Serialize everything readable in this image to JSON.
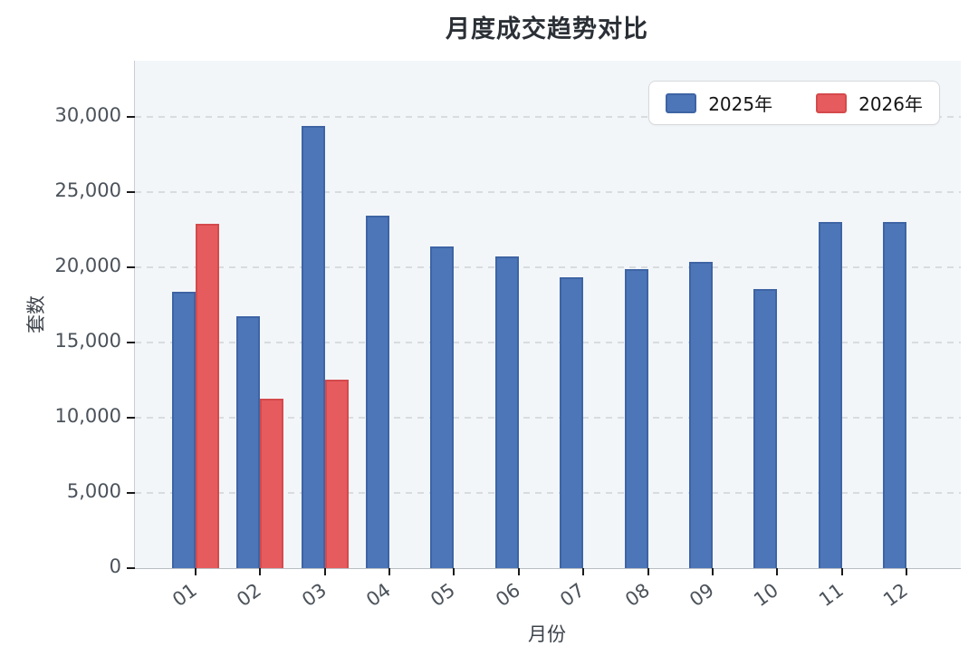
{
  "title": "月度成交趋势对比",
  "legend": {
    "items": [
      {
        "label": "2025年",
        "color": "#4c76b8",
        "edge": "#3e64a4"
      },
      {
        "label": "2026年",
        "color": "#e65c5e",
        "edge": "#d44a4c"
      }
    ]
  },
  "chart_data": {
    "type": "bar",
    "title": "月度成交趋势对比",
    "xlabel": "月份",
    "ylabel": "套数",
    "categories": [
      "01",
      "02",
      "03",
      "04",
      "05",
      "06",
      "07",
      "08",
      "09",
      "10",
      "11",
      "12"
    ],
    "series": [
      {
        "name": "2025年",
        "color": "#4c76b8",
        "edge_color": "#3e64a4",
        "values": [
          18400,
          16750,
          29400,
          23450,
          21400,
          20750,
          19350,
          19900,
          20400,
          18550,
          23000,
          23000
        ]
      },
      {
        "name": "2026年",
        "color": "#e65c5e",
        "edge_color": "#d44a4c",
        "values": [
          22900,
          11300,
          12550,
          null,
          null,
          null,
          null,
          null,
          null,
          null,
          null,
          null
        ]
      }
    ],
    "ylim": [
      0,
      33750
    ],
    "yticks": [
      0,
      5000,
      10000,
      15000,
      20000,
      25000,
      30000
    ],
    "grid": "horizontal-dashed",
    "legend_position": "top-right",
    "plot_background": "#f3f6f9",
    "xtick_label_rotation_deg": -36
  }
}
